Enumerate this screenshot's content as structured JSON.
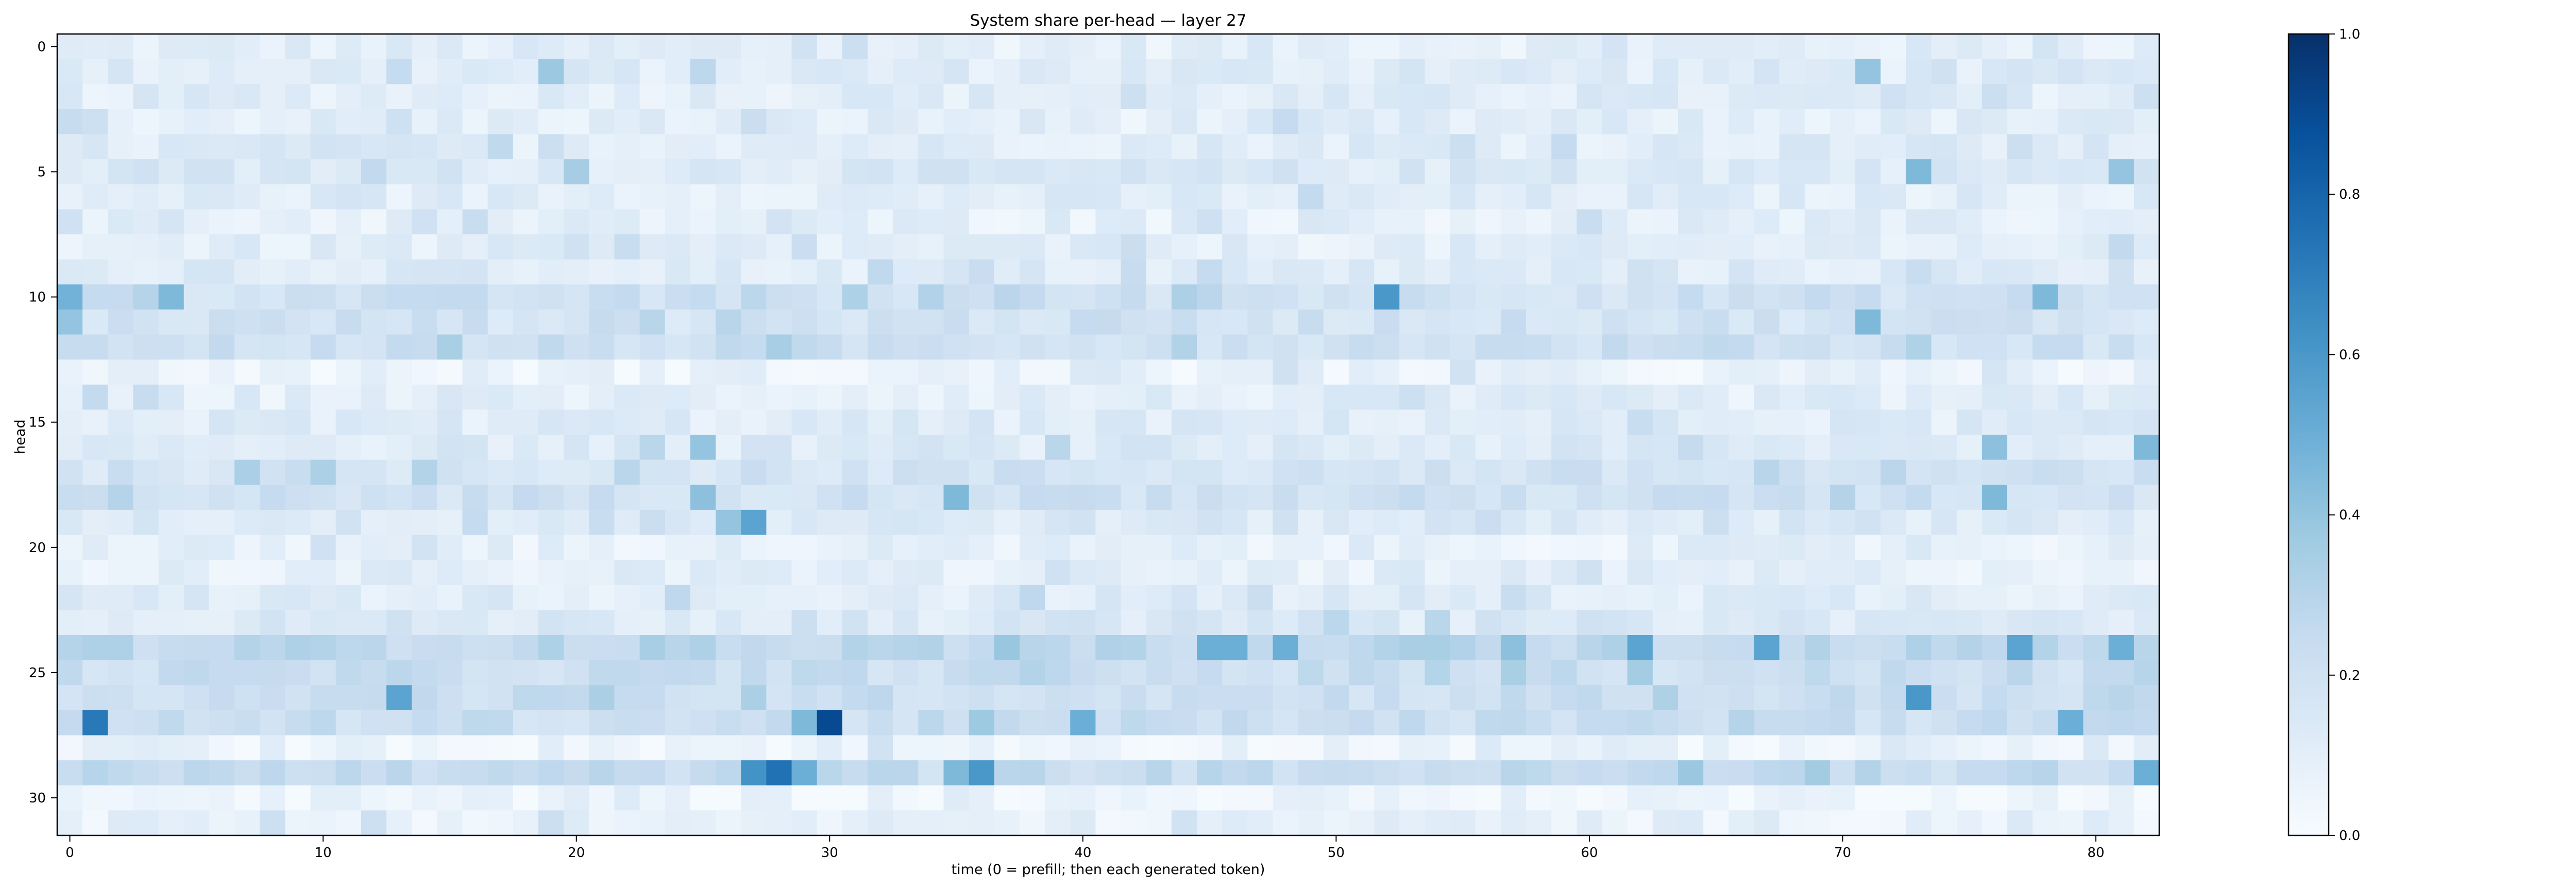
{
  "chart_data": {
    "type": "heatmap",
    "title": "System share per-head — layer 27",
    "xlabel": "time (0 = prefill; then each generated token)",
    "ylabel": "head",
    "colormap": "Blues",
    "n_heads": 32,
    "n_times": 83,
    "x_ticks": [
      "0",
      "10",
      "20",
      "30",
      "40",
      "50",
      "60",
      "70",
      "80"
    ],
    "y_ticks": [
      "0",
      "5",
      "10",
      "15",
      "20",
      "25",
      "30"
    ],
    "colorbar_ticks": [
      "0.0",
      "0.2",
      "0.4",
      "0.6",
      "0.8",
      "1.0"
    ],
    "vmin": 0.0,
    "vmax": 1.0,
    "head_base_values": [
      0.1,
      0.12,
      0.11,
      0.1,
      0.12,
      0.14,
      0.11,
      0.09,
      0.1,
      0.12,
      0.2,
      0.19,
      0.21,
      0.06,
      0.1,
      0.12,
      0.13,
      0.18,
      0.2,
      0.14,
      0.08,
      0.09,
      0.12,
      0.14,
      0.27,
      0.22,
      0.22,
      0.22,
      0.06,
      0.24,
      0.05,
      0.08
    ],
    "highlight_cells": [
      {
        "head": 1,
        "time": 19,
        "value": 0.38
      },
      {
        "head": 1,
        "time": 71,
        "value": 0.4
      },
      {
        "head": 5,
        "time": 20,
        "value": 0.35
      },
      {
        "head": 5,
        "time": 73,
        "value": 0.45
      },
      {
        "head": 5,
        "time": 81,
        "value": 0.4
      },
      {
        "head": 10,
        "time": 0,
        "value": 0.48
      },
      {
        "head": 10,
        "time": 4,
        "value": 0.45
      },
      {
        "head": 10,
        "time": 52,
        "value": 0.6
      },
      {
        "head": 10,
        "time": 78,
        "value": 0.45
      },
      {
        "head": 11,
        "time": 0,
        "value": 0.4
      },
      {
        "head": 11,
        "time": 71,
        "value": 0.45
      },
      {
        "head": 16,
        "time": 25,
        "value": 0.4
      },
      {
        "head": 16,
        "time": 76,
        "value": 0.42
      },
      {
        "head": 16,
        "time": 82,
        "value": 0.45
      },
      {
        "head": 18,
        "time": 25,
        "value": 0.42
      },
      {
        "head": 18,
        "time": 35,
        "value": 0.45
      },
      {
        "head": 18,
        "time": 76,
        "value": 0.45
      },
      {
        "head": 19,
        "time": 26,
        "value": 0.4
      },
      {
        "head": 19,
        "time": 27,
        "value": 0.55
      },
      {
        "head": 24,
        "time": 45,
        "value": 0.5
      },
      {
        "head": 24,
        "time": 46,
        "value": 0.5
      },
      {
        "head": 24,
        "time": 48,
        "value": 0.5
      },
      {
        "head": 24,
        "time": 62,
        "value": 0.55
      },
      {
        "head": 24,
        "time": 67,
        "value": 0.55
      },
      {
        "head": 24,
        "time": 77,
        "value": 0.55
      },
      {
        "head": 24,
        "time": 81,
        "value": 0.5
      },
      {
        "head": 26,
        "time": 13,
        "value": 0.55
      },
      {
        "head": 26,
        "time": 73,
        "value": 0.6
      },
      {
        "head": 27,
        "time": 1,
        "value": 0.72
      },
      {
        "head": 27,
        "time": 30,
        "value": 0.9
      },
      {
        "head": 27,
        "time": 29,
        "value": 0.45
      },
      {
        "head": 27,
        "time": 40,
        "value": 0.5
      },
      {
        "head": 27,
        "time": 79,
        "value": 0.5
      },
      {
        "head": 29,
        "time": 27,
        "value": 0.62
      },
      {
        "head": 29,
        "time": 28,
        "value": 0.75
      },
      {
        "head": 29,
        "time": 29,
        "value": 0.5
      },
      {
        "head": 29,
        "time": 36,
        "value": 0.6
      },
      {
        "head": 29,
        "time": 35,
        "value": 0.45
      },
      {
        "head": 29,
        "time": 82,
        "value": 0.5
      }
    ]
  }
}
